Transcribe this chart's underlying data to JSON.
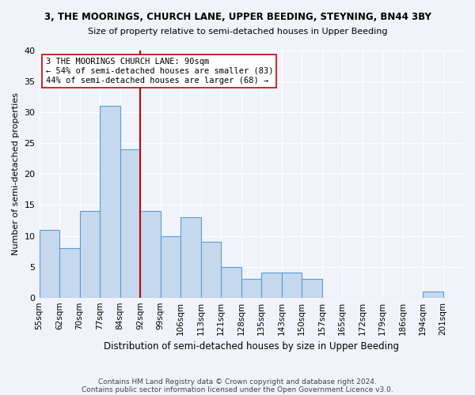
{
  "title1": "3, THE MOORINGS, CHURCH LANE, UPPER BEEDING, STEYNING, BN44 3BY",
  "title2": "Size of property relative to semi-detached houses in Upper Beeding",
  "xlabel": "Distribution of semi-detached houses by size in Upper Beeding",
  "ylabel": "Number of semi-detached properties",
  "bar_color": "#c5d8ed",
  "bar_edge_color": "#5a9fd4",
  "bins": [
    "55sqm",
    "62sqm",
    "70sqm",
    "77sqm",
    "84sqm",
    "92sqm",
    "99sqm",
    "106sqm",
    "113sqm",
    "121sqm",
    "128sqm",
    "135sqm",
    "143sqm",
    "150sqm",
    "157sqm",
    "165sqm",
    "172sqm",
    "179sqm",
    "186sqm",
    "194sqm",
    "201sqm"
  ],
  "values": [
    11,
    8,
    14,
    31,
    24,
    14,
    10,
    13,
    9,
    5,
    3,
    4,
    4,
    3,
    0,
    0,
    0,
    0,
    0,
    1
  ],
  "property_label": "3 THE MOORINGS CHURCH LANE: 90sqm",
  "smaller_pct": 54,
  "smaller_count": 83,
  "larger_pct": 44,
  "larger_count": 68,
  "vline_color": "#cc0000",
  "annotation_box_color": "#ffffff",
  "annotation_box_edge": "#cc0000",
  "ylim": [
    0,
    40
  ],
  "yticks": [
    0,
    5,
    10,
    15,
    20,
    25,
    30,
    35,
    40
  ],
  "footer1": "Contains HM Land Registry data © Crown copyright and database right 2024.",
  "footer2": "Contains public sector information licensed under the Open Government Licence v3.0.",
  "background_color": "#f0f4fa"
}
